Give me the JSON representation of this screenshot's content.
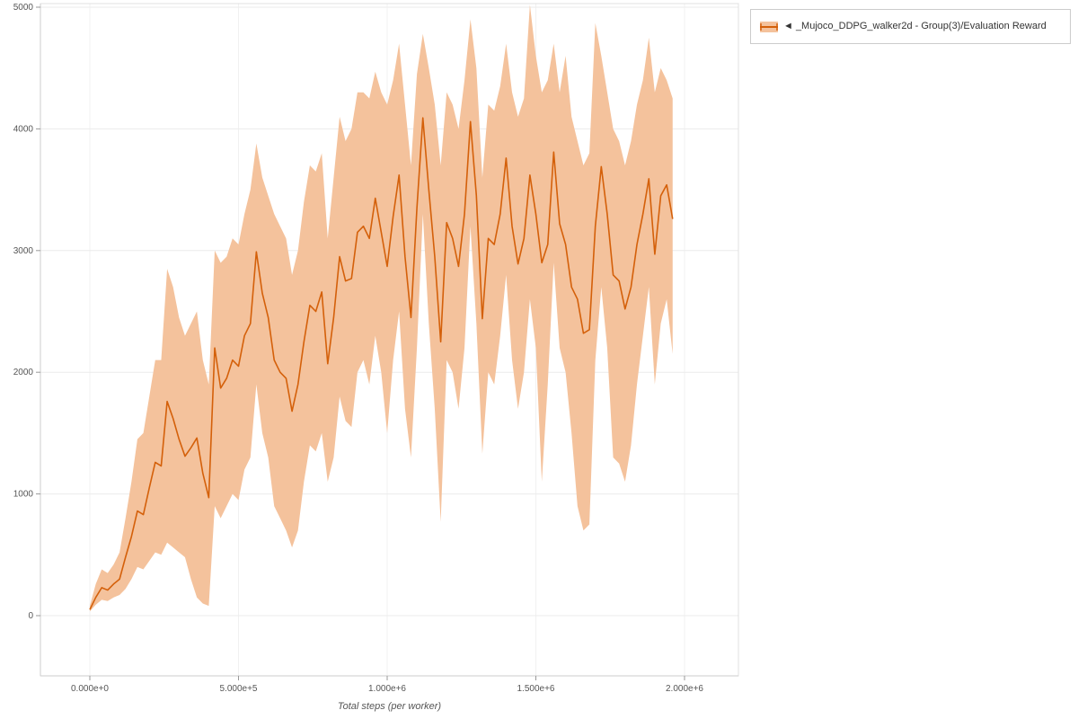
{
  "legend": {
    "items": [
      {
        "label": "◄ _Mujoco_DDPG_walker2d - Group(3)/Evaluation Reward",
        "band_color": "#f4c29c",
        "line_color": "#d4600a"
      }
    ]
  },
  "chart_data": {
    "type": "line",
    "title": "",
    "xlabel": "Total steps (per worker)",
    "ylabel": "",
    "xlim": [
      0,
      2000000
    ],
    "ylim": [
      0,
      5000
    ],
    "grid": true,
    "legend_position": "top-right",
    "x_ticks": [
      {
        "value": 0,
        "label": "0.000e+0"
      },
      {
        "value": 500000,
        "label": "5.000e+5"
      },
      {
        "value": 1000000,
        "label": "1.000e+6"
      },
      {
        "value": 1500000,
        "label": "1.500e+6"
      },
      {
        "value": 2000000,
        "label": "2.000e+6"
      }
    ],
    "y_ticks": [
      {
        "value": 0,
        "label": "0"
      },
      {
        "value": 1000,
        "label": "1000"
      },
      {
        "value": 2000,
        "label": "2000"
      },
      {
        "value": 3000,
        "label": "3000"
      },
      {
        "value": 4000,
        "label": "4000"
      },
      {
        "value": 5000,
        "label": "5000"
      }
    ],
    "series": [
      {
        "name": "_Mujoco_DDPG_walker2d - Group(3)/Evaluation Reward",
        "color": "#d4600a",
        "band_color": "#f4c29c",
        "x": [
          0,
          20000,
          40000,
          60000,
          80000,
          100000,
          120000,
          140000,
          160000,
          180000,
          200000,
          220000,
          240000,
          260000,
          280000,
          300000,
          320000,
          340000,
          360000,
          380000,
          400000,
          420000,
          440000,
          460000,
          480000,
          500000,
          520000,
          540000,
          560000,
          580000,
          600000,
          620000,
          640000,
          660000,
          680000,
          700000,
          720000,
          740000,
          760000,
          780000,
          800000,
          820000,
          840000,
          860000,
          880000,
          900000,
          920000,
          940000,
          960000,
          980000,
          1000000,
          1020000,
          1040000,
          1060000,
          1080000,
          1100000,
          1120000,
          1140000,
          1160000,
          1180000,
          1200000,
          1220000,
          1240000,
          1260000,
          1280000,
          1300000,
          1320000,
          1340000,
          1360000,
          1380000,
          1400000,
          1420000,
          1440000,
          1460000,
          1480000,
          1500000,
          1520000,
          1540000,
          1560000,
          1580000,
          1600000,
          1620000,
          1640000,
          1660000,
          1680000,
          1700000,
          1720000,
          1740000,
          1760000,
          1780000,
          1800000,
          1820000,
          1840000,
          1860000,
          1880000,
          1900000,
          1920000,
          1940000,
          1960000
        ],
        "mean": [
          50,
          150,
          230,
          210,
          260,
          300,
          480,
          650,
          860,
          830,
          1050,
          1260,
          1230,
          1760,
          1620,
          1450,
          1310,
          1380,
          1460,
          1170,
          970,
          2200,
          1870,
          1950,
          2100,
          2050,
          2300,
          2400,
          2990,
          2650,
          2450,
          2100,
          2000,
          1950,
          1680,
          1900,
          2250,
          2550,
          2500,
          2660,
          2070,
          2450,
          2950,
          2750,
          2770,
          3150,
          3200,
          3100,
          3430,
          3150,
          2870,
          3280,
          3620,
          2950,
          2450,
          3350,
          4090,
          3500,
          2950,
          2250,
          3230,
          3100,
          2870,
          3300,
          4060,
          3450,
          2440,
          3100,
          3050,
          3300,
          3760,
          3200,
          2890,
          3100,
          3620,
          3300,
          2900,
          3050,
          3810,
          3220,
          3050,
          2700,
          2600,
          2320,
          2350,
          3200,
          3690,
          3300,
          2800,
          2750,
          2520,
          2700,
          3050,
          3300,
          3590,
          2970,
          3450,
          3540,
          3260
        ],
        "lower": [
          35,
          90,
          130,
          120,
          150,
          170,
          220,
          300,
          400,
          380,
          450,
          520,
          500,
          600,
          560,
          520,
          480,
          300,
          150,
          100,
          80,
          900,
          800,
          900,
          1000,
          950,
          1200,
          1300,
          1900,
          1500,
          1300,
          900,
          800,
          700,
          560,
          700,
          1100,
          1400,
          1350,
          1500,
          1100,
          1300,
          1800,
          1600,
          1550,
          2000,
          2100,
          1900,
          2300,
          2000,
          1500,
          2100,
          2500,
          1700,
          1300,
          2200,
          3300,
          2400,
          1700,
          770,
          2100,
          2000,
          1700,
          2200,
          3200,
          2400,
          1330,
          2000,
          1900,
          2300,
          2800,
          2100,
          1700,
          2000,
          2600,
          2200,
          1100,
          1900,
          2900,
          2200,
          2000,
          1500,
          900,
          700,
          750,
          2100,
          2700,
          2200,
          1300,
          1250,
          1100,
          1400,
          1900,
          2300,
          2700,
          1900,
          2400,
          2600,
          2150
        ],
        "upper": [
          80,
          260,
          380,
          350,
          420,
          520,
          800,
          1100,
          1450,
          1500,
          1800,
          2100,
          2100,
          2850,
          2700,
          2450,
          2300,
          2400,
          2500,
          2100,
          1900,
          3000,
          2900,
          2950,
          3100,
          3050,
          3300,
          3500,
          3880,
          3600,
          3450,
          3300,
          3200,
          3100,
          2800,
          3000,
          3400,
          3700,
          3650,
          3800,
          3100,
          3600,
          4100,
          3900,
          4000,
          4300,
          4300,
          4250,
          4470,
          4300,
          4200,
          4400,
          4700,
          4200,
          3700,
          4450,
          4780,
          4500,
          4200,
          3700,
          4300,
          4200,
          4000,
          4400,
          4900,
          4500,
          3600,
          4200,
          4150,
          4350,
          4700,
          4300,
          4100,
          4250,
          5020,
          4600,
          4300,
          4400,
          4700,
          4300,
          4600,
          4100,
          3900,
          3700,
          3800,
          4870,
          4600,
          4300,
          4000,
          3900,
          3700,
          3900,
          4200,
          4400,
          4750,
          4300,
          4500,
          4400,
          4250
        ]
      }
    ]
  }
}
